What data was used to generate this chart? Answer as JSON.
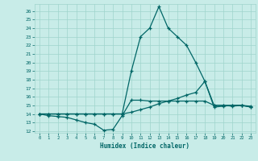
{
  "xlabel": "Humidex (Indice chaleur)",
  "ylabel": "",
  "xlim": [
    -0.5,
    23.5
  ],
  "ylim": [
    11.8,
    26.8
  ],
  "yticks": [
    12,
    13,
    14,
    15,
    16,
    17,
    18,
    19,
    20,
    21,
    22,
    23,
    24,
    25,
    26
  ],
  "xticks": [
    0,
    1,
    2,
    3,
    4,
    5,
    6,
    7,
    8,
    9,
    10,
    11,
    12,
    13,
    14,
    15,
    16,
    17,
    18,
    19,
    20,
    21,
    22,
    23
  ],
  "bg_color": "#c8ece8",
  "grid_color": "#9fd4cc",
  "line_color": "#006666",
  "line1_x": [
    0,
    1,
    2,
    3,
    4,
    5,
    6,
    7,
    8,
    9,
    10,
    11,
    12,
    13,
    14,
    15,
    16,
    17,
    18,
    19,
    20,
    21,
    22,
    23
  ],
  "line1_y": [
    14.0,
    13.8,
    13.7,
    13.6,
    13.3,
    13.0,
    12.8,
    12.1,
    12.2,
    13.8,
    15.6,
    15.6,
    15.5,
    15.5,
    15.5,
    15.5,
    15.5,
    15.5,
    15.5,
    15.0,
    15.0,
    14.9,
    15.0,
    14.8
  ],
  "line2_x": [
    0,
    1,
    2,
    3,
    4,
    5,
    6,
    7,
    8,
    9,
    10,
    11,
    12,
    13,
    14,
    15,
    16,
    17,
    18,
    19,
    20,
    21,
    22,
    23
  ],
  "line2_y": [
    14.0,
    14.0,
    14.0,
    14.0,
    14.0,
    14.0,
    14.0,
    14.0,
    14.0,
    14.0,
    14.2,
    14.5,
    14.8,
    15.2,
    15.5,
    15.8,
    16.2,
    16.5,
    17.8,
    14.8,
    14.9,
    15.0,
    15.0,
    14.9
  ],
  "line3_x": [
    0,
    1,
    2,
    3,
    4,
    5,
    6,
    7,
    8,
    9,
    10,
    11,
    12,
    13,
    14,
    15,
    16,
    17,
    18,
    19,
    20,
    21,
    22,
    23
  ],
  "line3_y": [
    14.0,
    14.0,
    14.0,
    14.0,
    14.0,
    14.0,
    14.0,
    14.0,
    14.0,
    14.0,
    19.0,
    23.0,
    24.0,
    26.5,
    24.0,
    23.0,
    22.0,
    20.0,
    17.8,
    15.0,
    15.0,
    15.0,
    15.0,
    14.8
  ]
}
